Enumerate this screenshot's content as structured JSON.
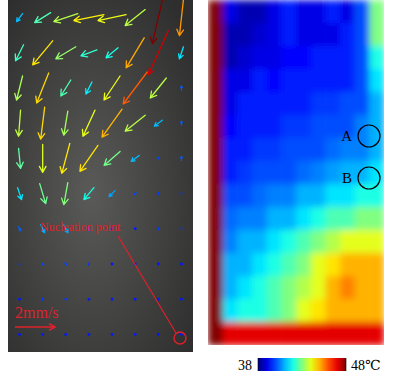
{
  "chart_data": [
    {
      "type": "quiver",
      "annotation": "Nucleation point",
      "key": {
        "value": 2,
        "label": "2mm/s"
      },
      "u": [
        [
          -0.3,
          -0.8,
          -1.2,
          -1.5,
          -1.4,
          -1.0,
          -0.6,
          -0.2
        ],
        [
          -0.4,
          -1.0,
          -1.0,
          -0.8,
          -0.6,
          -0.9,
          -1.0,
          -0.2
        ],
        [
          -0.3,
          -0.6,
          -0.5,
          -0.3,
          -0.8,
          -1.2,
          -0.8,
          0.0
        ],
        [
          -0.1,
          -0.2,
          -0.2,
          -0.6,
          -1.0,
          -1.0,
          -0.4,
          0.0
        ],
        [
          0.1,
          0.0,
          -0.4,
          -0.9,
          -0.8,
          -0.4,
          -0.1,
          0.0
        ],
        [
          0.2,
          0.3,
          -0.2,
          -0.5,
          -0.3,
          -0.1,
          0.0,
          0.0
        ],
        [
          0.1,
          0.2,
          0.2,
          0.0,
          -0.1,
          0.0,
          0.0,
          0.0
        ],
        [
          0.0,
          0.1,
          0.1,
          0.0,
          0.0,
          0.0,
          0.0,
          0.0
        ],
        [
          0.0,
          0.0,
          0.1,
          0.0,
          0.0,
          0.0,
          0.0,
          0.0
        ],
        [
          0.0,
          0.0,
          0.0,
          0.0,
          0.0,
          0.0,
          0.0,
          0.0
        ]
      ],
      "v": [
        [
          -0.4,
          -0.5,
          -0.4,
          -0.3,
          -0.3,
          -0.8,
          -2.6,
          -1.8
        ],
        [
          -0.8,
          -1.2,
          -0.6,
          -0.3,
          -0.5,
          -1.5,
          -2.2,
          -0.6
        ],
        [
          -1.2,
          -1.5,
          -0.8,
          -0.6,
          -1.2,
          -1.6,
          -1.0,
          0.2
        ],
        [
          -1.3,
          -1.6,
          -1.2,
          -1.3,
          -1.4,
          -0.8,
          -0.3,
          0.2
        ],
        [
          -1.0,
          -1.4,
          -1.5,
          -1.3,
          -0.7,
          -0.3,
          0.1,
          0.2
        ],
        [
          -0.6,
          -1.0,
          -1.1,
          -0.6,
          -0.3,
          -0.1,
          0.1,
          0.1
        ],
        [
          -0.2,
          -0.4,
          -0.4,
          -0.2,
          -0.1,
          0.0,
          0.1,
          0.1
        ],
        [
          -0.1,
          -0.1,
          -0.1,
          -0.1,
          0.0,
          0.0,
          0.0,
          0.0
        ],
        [
          0.0,
          -0.1,
          0.0,
          0.0,
          0.0,
          0.0,
          0.0,
          0.0
        ],
        [
          0.0,
          0.0,
          0.0,
          0.0,
          0.0,
          0.0,
          0.0,
          0.0
        ]
      ]
    },
    {
      "type": "heatmap",
      "cells": [
        [
          48,
          39,
          38.5,
          38.5,
          39,
          39.5,
          39,
          39,
          39.5,
          39,
          40,
          43
        ],
        [
          48,
          38.5,
          38.5,
          38.8,
          39,
          39.5,
          39,
          39,
          39,
          39.5,
          40,
          43
        ],
        [
          48,
          38.5,
          38.8,
          39,
          39,
          39.3,
          39.3,
          39.5,
          39.5,
          39.5,
          40,
          42
        ],
        [
          48,
          39,
          39,
          39.5,
          39.3,
          39.5,
          39.5,
          39.5,
          39.5,
          39.5,
          40,
          41.5
        ],
        [
          48,
          39,
          39.5,
          39.5,
          39.5,
          39.5,
          39.5,
          39.8,
          39.8,
          40,
          40,
          41
        ],
        [
          48,
          39.3,
          39.5,
          39.5,
          39.5,
          39.8,
          39.8,
          40,
          40,
          40,
          40.5,
          41
        ],
        [
          48,
          39.5,
          39.5,
          39.8,
          39.8,
          40,
          40,
          40,
          40.3,
          40.5,
          40.5,
          41
        ],
        [
          48,
          39.5,
          39.8,
          40,
          40,
          40,
          40.3,
          40.5,
          40.8,
          41,
          41,
          41.5
        ],
        [
          48,
          40,
          40,
          40.3,
          40.5,
          40.5,
          41,
          41,
          41.5,
          41.5,
          42,
          42
        ],
        [
          48,
          40.3,
          40.5,
          40.5,
          41,
          41,
          41.5,
          42,
          42.5,
          42.5,
          43,
          43
        ],
        [
          48,
          40.5,
          41,
          41,
          41.5,
          42,
          42.5,
          43,
          43.5,
          44,
          44,
          44
        ],
        [
          48,
          41,
          41,
          41.5,
          42,
          42.5,
          43,
          44,
          44.5,
          45,
          45,
          45
        ],
        [
          48,
          41,
          41.5,
          42,
          42.5,
          43,
          43.5,
          44,
          45,
          45.5,
          45,
          45
        ],
        [
          48,
          41.5,
          42,
          42,
          42.5,
          43,
          44,
          44.5,
          45,
          45,
          45,
          45
        ],
        [
          48,
          47,
          47,
          47,
          47,
          47,
          47,
          47,
          47,
          47,
          47,
          47
        ]
      ],
      "colorbar": {
        "range": [
          38,
          48
        ],
        "ticks": [
          38,
          {
            "value": 48,
            "label": "48℃"
          }
        ]
      },
      "annotations": [
        "A",
        "B"
      ]
    }
  ]
}
